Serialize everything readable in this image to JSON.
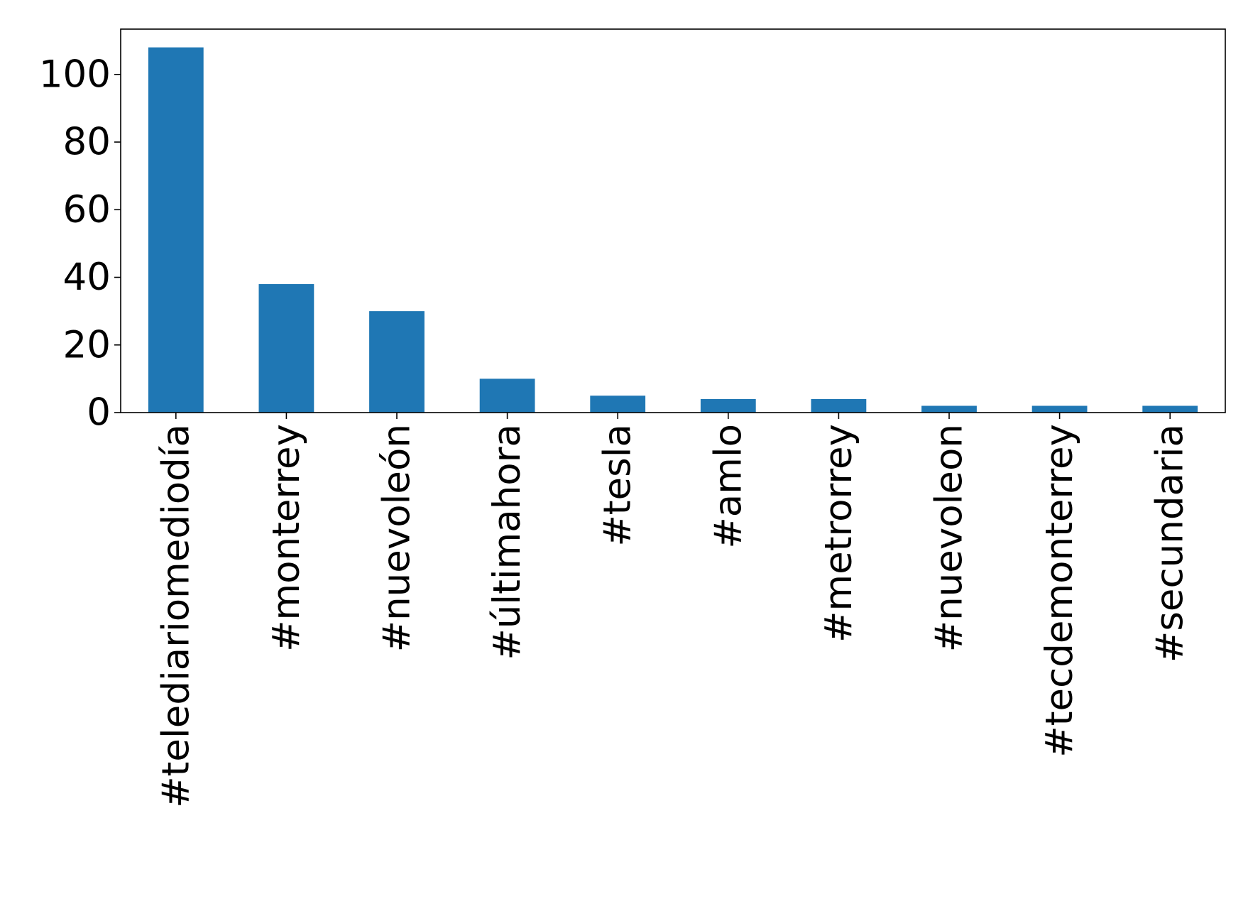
{
  "chart_data": {
    "type": "bar",
    "categories": [
      "#telediariomediodía",
      "#monterrey",
      "#nuevoleón",
      "#últimahora",
      "#tesla",
      "#amlo",
      "#metrorrey",
      "#nuevoleon",
      "#tecdemonterrey",
      "#secundaria"
    ],
    "values": [
      108,
      38,
      30,
      10,
      5,
      4,
      4,
      2,
      2,
      2
    ],
    "title": "",
    "xlabel": "",
    "ylabel": "",
    "ylim": [
      0,
      113.4
    ],
    "yticks": [
      0,
      20,
      40,
      60,
      80,
      100
    ],
    "bar_color": "#1f77b4",
    "grid": false,
    "legend": "none",
    "xtick_rotation": "vertical"
  }
}
